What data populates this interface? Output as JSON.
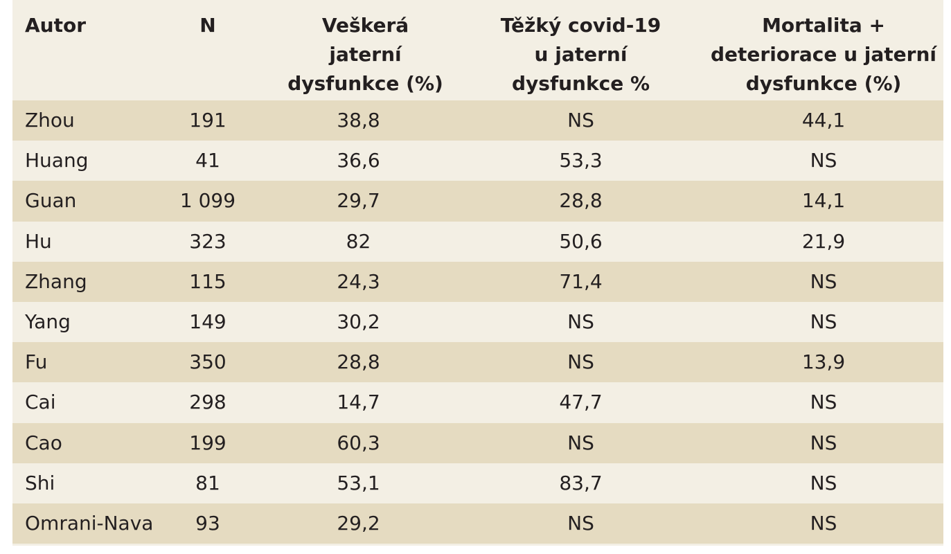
{
  "table": {
    "headers": [
      "Autor",
      "N",
      "Veškerá jaterní dysfunkce (%)",
      "Těžký covid-19 u jaterní dysfunkce %",
      "Mortalita + deteriorace u jaterní dysfunkce (%)"
    ],
    "rows": [
      [
        "Zhou",
        "191",
        "38,8",
        "NS",
        "44,1"
      ],
      [
        "Huang",
        "41",
        "36,6",
        "53,3",
        "NS"
      ],
      [
        "Guan",
        "1 099",
        "29,7",
        "28,8",
        "14,1"
      ],
      [
        "Hu",
        "323",
        "82",
        "50,6",
        "21,9"
      ],
      [
        "Zhang",
        "115",
        "24,3",
        "71,4",
        "NS"
      ],
      [
        "Yang",
        "149",
        "30,2",
        "NS",
        "NS"
      ],
      [
        "Fu",
        "350",
        "28,8",
        "NS",
        "13,9"
      ],
      [
        "Cai",
        "298",
        "14,7",
        "47,7",
        "NS"
      ],
      [
        "Cao",
        "199",
        "60,3",
        "NS",
        "NS"
      ],
      [
        "Shi",
        "81",
        "53,1",
        "83,7",
        "NS"
      ],
      [
        "Omrani-Nava",
        "93",
        "29,2",
        "NS",
        "NS"
      ]
    ]
  },
  "colors": {
    "header_bg": "#f3efe4",
    "row_odd_bg": "#e5dbc1",
    "row_even_bg": "#f3efe4",
    "text": "#231f20"
  }
}
